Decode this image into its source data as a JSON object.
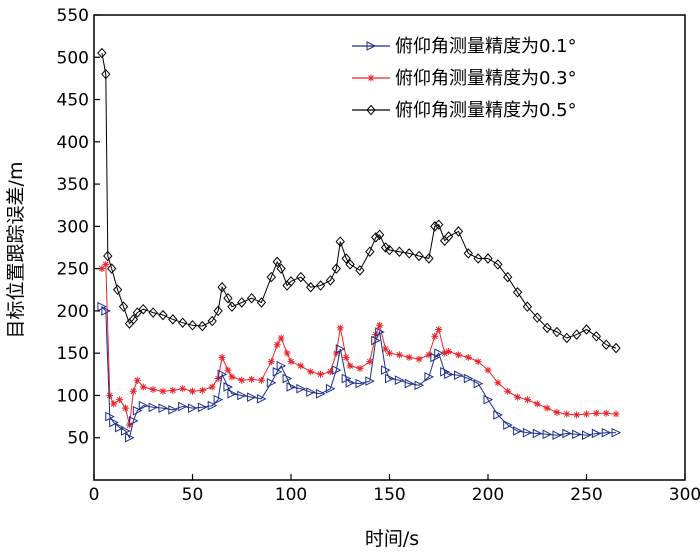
{
  "chart_data": {
    "type": "line",
    "xlabel": "时间/s",
    "ylabel": "目标位置跟踪误差/m",
    "xlim": [
      0,
      300
    ],
    "ylim": [
      0,
      550
    ],
    "xticks": [
      0,
      50,
      100,
      150,
      200,
      250,
      300
    ],
    "yticks": [
      50,
      100,
      150,
      200,
      250,
      300,
      350,
      400,
      450,
      500,
      550
    ],
    "grid": false,
    "legend_position": "top-right",
    "series": [
      {
        "name": "俯仰角测量精度为0.1°",
        "color": "#1f2f8c",
        "marker": "triangle-right",
        "x": [
          4,
          6,
          8,
          10,
          13,
          16,
          18,
          20,
          22,
          25,
          30,
          35,
          40,
          45,
          50,
          55,
          60,
          63,
          65,
          68,
          70,
          75,
          80,
          85,
          90,
          93,
          95,
          98,
          100,
          105,
          110,
          115,
          120,
          123,
          125,
          128,
          130,
          135,
          140,
          143,
          145,
          148,
          150,
          155,
          160,
          165,
          170,
          173,
          175,
          178,
          180,
          185,
          190,
          195,
          200,
          205,
          210,
          215,
          220,
          225,
          230,
          235,
          240,
          245,
          250,
          255,
          260,
          265
        ],
        "y": [
          205,
          200,
          75,
          68,
          62,
          58,
          50,
          70,
          82,
          88,
          86,
          85,
          83,
          87,
          85,
          86,
          88,
          95,
          125,
          110,
          102,
          100,
          98,
          96,
          115,
          128,
          135,
          120,
          110,
          108,
          104,
          102,
          108,
          130,
          155,
          120,
          115,
          114,
          117,
          165,
          175,
          130,
          120,
          118,
          114,
          112,
          122,
          145,
          150,
          128,
          125,
          124,
          120,
          114,
          95,
          77,
          65,
          58,
          56,
          55,
          54,
          53,
          55,
          54,
          53,
          55,
          56,
          56
        ]
      },
      {
        "name": "俯仰角测量精度为0.3°",
        "color": "#e8242a",
        "marker": "star",
        "x": [
          4,
          6,
          8,
          10,
          13,
          16,
          18,
          20,
          22,
          25,
          30,
          35,
          40,
          45,
          50,
          55,
          60,
          63,
          65,
          68,
          70,
          75,
          80,
          85,
          90,
          93,
          95,
          98,
          100,
          105,
          110,
          115,
          120,
          123,
          125,
          128,
          130,
          135,
          140,
          143,
          145,
          148,
          150,
          155,
          160,
          165,
          170,
          173,
          175,
          178,
          180,
          185,
          190,
          195,
          200,
          205,
          210,
          215,
          220,
          225,
          230,
          235,
          240,
          245,
          250,
          255,
          260,
          265
        ],
        "y": [
          250,
          255,
          100,
          90,
          95,
          85,
          65,
          105,
          118,
          110,
          107,
          105,
          106,
          108,
          105,
          106,
          110,
          120,
          145,
          130,
          122,
          118,
          119,
          118,
          140,
          160,
          168,
          150,
          140,
          135,
          128,
          125,
          128,
          150,
          180,
          145,
          135,
          132,
          140,
          172,
          183,
          155,
          150,
          148,
          145,
          143,
          148,
          170,
          178,
          150,
          152,
          148,
          145,
          140,
          130,
          115,
          105,
          98,
          95,
          90,
          85,
          80,
          78,
          77,
          78,
          79,
          79,
          78
        ]
      },
      {
        "name": "俯仰角测量精度为0.5°",
        "color": "#000000",
        "marker": "diamond",
        "x": [
          4,
          6,
          7,
          9,
          12,
          15,
          18,
          20,
          22,
          25,
          30,
          35,
          40,
          45,
          50,
          55,
          60,
          63,
          65,
          68,
          70,
          75,
          80,
          85,
          90,
          93,
          95,
          98,
          100,
          105,
          110,
          115,
          120,
          123,
          125,
          128,
          130,
          135,
          140,
          143,
          145,
          148,
          150,
          155,
          160,
          165,
          170,
          173,
          175,
          178,
          180,
          185,
          190,
          195,
          200,
          205,
          210,
          215,
          220,
          225,
          230,
          235,
          240,
          245,
          250,
          255,
          260,
          265
        ],
        "y": [
          505,
          480,
          265,
          250,
          225,
          205,
          185,
          190,
          198,
          202,
          198,
          195,
          190,
          186,
          183,
          182,
          188,
          200,
          228,
          215,
          205,
          210,
          215,
          210,
          240,
          258,
          250,
          230,
          235,
          240,
          228,
          230,
          236,
          250,
          282,
          262,
          255,
          248,
          270,
          287,
          290,
          275,
          272,
          270,
          268,
          265,
          262,
          300,
          302,
          283,
          288,
          294,
          268,
          262,
          262,
          255,
          240,
          222,
          205,
          192,
          180,
          175,
          168,
          172,
          178,
          170,
          160,
          156
        ]
      }
    ]
  }
}
